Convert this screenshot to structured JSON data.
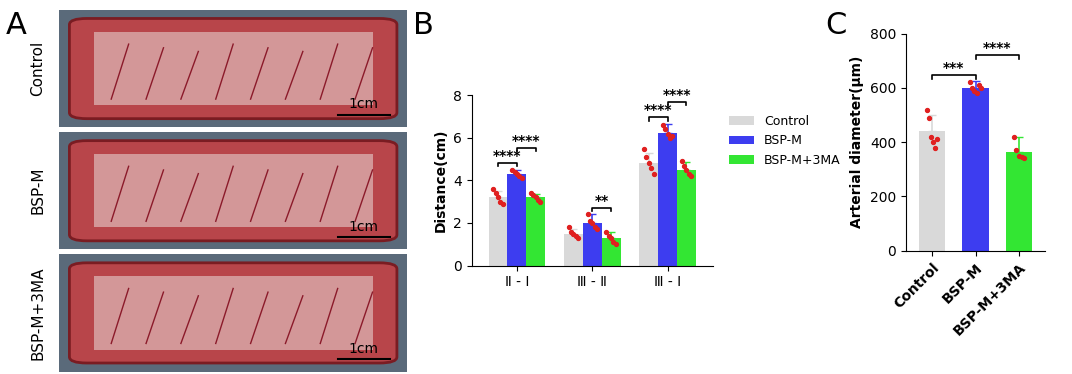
{
  "image_panel": {
    "panel": "A",
    "type": "image",
    "rows": [
      {
        "label": "Control",
        "scale_bar": "1cm"
      },
      {
        "label": "BSP-M",
        "scale_bar": "1cm"
      },
      {
        "label": "BSP-M+3MA",
        "scale_bar": "1cm"
      }
    ]
  },
  "chart_data": [
    {
      "panel": "B",
      "type": "bar",
      "ylabel": "Distance(cm)",
      "categories": [
        "Ⅱ - Ⅰ",
        "Ⅲ - Ⅱ",
        "Ⅲ - Ⅰ"
      ],
      "series": [
        {
          "name": "Control",
          "color": "#d9d9d9",
          "values": [
            3.2,
            1.5,
            4.8
          ],
          "errors": [
            0.3,
            0.2,
            0.5
          ],
          "points": [
            [
              3.6,
              3.4,
              3.2,
              3.0,
              2.9
            ],
            [
              1.8,
              1.6,
              1.5,
              1.4,
              1.3
            ],
            [
              5.5,
              5.1,
              4.8,
              4.6,
              4.3
            ]
          ]
        },
        {
          "name": "BSP-M",
          "color": "#3d3df0",
          "values": [
            4.3,
            2.0,
            6.25
          ],
          "errors": [
            0.2,
            0.4,
            0.4
          ],
          "points": [
            [
              4.5,
              4.4,
              4.3,
              4.2,
              4.1
            ],
            [
              2.4,
              2.1,
              2.0,
              1.8,
              1.7
            ],
            [
              6.6,
              6.4,
              6.2,
              6.0,
              6.1
            ]
          ]
        },
        {
          "name": "BSP-M+3MA",
          "color": "#33e633",
          "values": [
            3.2,
            1.3,
            4.5
          ],
          "errors": [
            0.15,
            0.3,
            0.35
          ],
          "points": [
            [
              3.4,
              3.3,
              3.2,
              3.1,
              3.0
            ],
            [
              1.6,
              1.4,
              1.3,
              1.1,
              1.0
            ],
            [
              4.9,
              4.7,
              4.5,
              4.3,
              4.2
            ]
          ]
        }
      ],
      "ylim": [
        0,
        8
      ],
      "yticks": [
        0,
        2,
        4,
        6,
        8
      ],
      "legend": "upper left",
      "annotations": [
        {
          "category": 0,
          "from": 0,
          "to": 1,
          "text": "****"
        },
        {
          "category": 0,
          "from": 1,
          "to": 2,
          "text": "****"
        },
        {
          "category": 1,
          "from": 1,
          "to": 2,
          "text": "**"
        },
        {
          "category": 2,
          "from": 0,
          "to": 1,
          "text": "****"
        },
        {
          "category": 2,
          "from": 1,
          "to": 2,
          "text": "****"
        }
      ]
    },
    {
      "panel": "C",
      "type": "bar",
      "ylabel": "Arterial diameter(μm)",
      "categories": [
        "Control",
        "BSP-M",
        "BSP-M+3MA"
      ],
      "values": [
        440,
        600,
        365
      ],
      "errors": [
        60,
        25,
        55
      ],
      "points": [
        [
          520,
          490,
          420,
          400,
          380,
          410
        ],
        [
          620,
          600,
          590,
          580,
          610,
          600
        ],
        [
          420,
          370,
          350,
          345,
          340
        ]
      ],
      "colors": [
        "#d9d9d9",
        "#3d3df0",
        "#33e633"
      ],
      "ylim": [
        0,
        800
      ],
      "yticks": [
        0,
        200,
        400,
        600,
        800
      ],
      "annotations": [
        {
          "from": 0,
          "to": 1,
          "text": "***"
        },
        {
          "from": 1,
          "to": 2,
          "text": "****"
        }
      ]
    }
  ]
}
